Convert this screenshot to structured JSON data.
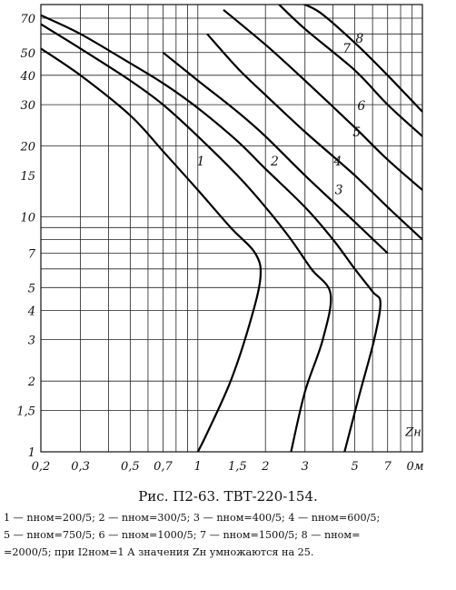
{
  "chart_data": {
    "type": "line",
    "x_axis": {
      "scale": "log",
      "unit": "Ом",
      "range": [
        0.2,
        10
      ],
      "ticks": [
        {
          "value": 0.2,
          "label": "0,2"
        },
        {
          "value": 0.3,
          "label": "0,3"
        },
        {
          "value": 0.5,
          "label": "0,5"
        },
        {
          "value": 0.7,
          "label": "0,7"
        },
        {
          "value": 1,
          "label": "1"
        },
        {
          "value": 1.5,
          "label": "1,5"
        },
        {
          "value": 2,
          "label": "2"
        },
        {
          "value": 3,
          "label": "3"
        },
        {
          "value": 5,
          "label": "5"
        },
        {
          "value": 7,
          "label": "7"
        },
        {
          "value": 10,
          "label": "0м"
        }
      ]
    },
    "y_axis": {
      "scale": "log",
      "range": [
        1,
        80
      ],
      "ticks": [
        {
          "value": 1,
          "label": "1"
        },
        {
          "value": 1.5,
          "label": "1,5"
        },
        {
          "value": 2,
          "label": "2"
        },
        {
          "value": 3,
          "label": "3"
        },
        {
          "value": 4,
          "label": "4"
        },
        {
          "value": 5,
          "label": "5"
        },
        {
          "value": 7,
          "label": "7"
        },
        {
          "value": 10,
          "label": "10"
        },
        {
          "value": 15,
          "label": "15"
        },
        {
          "value": 20,
          "label": "20"
        },
        {
          "value": 30,
          "label": "30"
        },
        {
          "value": 40,
          "label": "40"
        },
        {
          "value": 50,
          "label": "50"
        },
        {
          "value": 70,
          "label": "70"
        }
      ]
    },
    "axis_label": "Zн",
    "grid": true,
    "series": [
      {
        "label": "1",
        "points": [
          [
            0.2,
            52
          ],
          [
            0.3,
            40
          ],
          [
            0.5,
            27
          ],
          [
            0.7,
            19
          ],
          [
            1,
            13
          ],
          [
            1.4,
            9
          ],
          [
            1.8,
            7
          ],
          [
            1.9,
            5.5
          ],
          [
            1.7,
            3.5
          ],
          [
            1.4,
            2
          ],
          [
            1.1,
            1.2
          ],
          [
            1.0,
            1
          ]
        ]
      },
      {
        "label": "2",
        "points": [
          [
            0.2,
            66
          ],
          [
            0.3,
            52
          ],
          [
            0.5,
            38
          ],
          [
            0.7,
            30
          ],
          [
            1,
            22
          ],
          [
            1.5,
            15
          ],
          [
            2,
            11
          ],
          [
            2.6,
            8
          ],
          [
            3.2,
            6
          ],
          [
            3.9,
            4.7
          ],
          [
            3.6,
            3
          ],
          [
            3,
            1.8
          ],
          [
            2.6,
            1
          ]
        ]
      },
      {
        "label": "3",
        "points": [
          [
            0.2,
            72
          ],
          [
            0.3,
            60
          ],
          [
            0.5,
            45
          ],
          [
            0.7,
            37
          ],
          [
            1,
            29
          ],
          [
            1.5,
            21
          ],
          [
            2,
            16
          ],
          [
            3,
            11
          ],
          [
            4,
            8
          ],
          [
            5,
            6
          ],
          [
            6,
            4.8
          ],
          [
            6.5,
            4.3
          ],
          [
            6.1,
            3
          ],
          [
            5.2,
            1.7
          ],
          [
            4.5,
            1
          ]
        ]
      },
      {
        "label": "4",
        "points": [
          [
            0.7,
            50
          ],
          [
            1,
            38
          ],
          [
            1.5,
            28
          ],
          [
            2,
            22
          ],
          [
            3,
            15
          ],
          [
            5,
            9.5
          ],
          [
            7,
            7
          ]
        ]
      },
      {
        "label": "5",
        "points": [
          [
            1.1,
            60
          ],
          [
            1.5,
            43
          ],
          [
            2,
            33
          ],
          [
            3,
            23
          ],
          [
            5,
            15
          ],
          [
            7,
            11
          ],
          [
            10,
            8
          ]
        ]
      },
      {
        "label": "6",
        "points": [
          [
            1.3,
            76
          ],
          [
            2,
            54
          ],
          [
            3,
            38
          ],
          [
            5,
            24
          ],
          [
            7,
            17.5
          ],
          [
            10,
            13
          ]
        ]
      },
      {
        "label": "7",
        "points": [
          [
            2.3,
            80
          ],
          [
            3,
            63
          ],
          [
            5,
            42
          ],
          [
            7,
            30
          ],
          [
            10,
            22
          ]
        ]
      },
      {
        "label": "8",
        "points": [
          [
            2.8,
            82
          ],
          [
            3.5,
            74
          ],
          [
            5,
            55
          ],
          [
            7,
            40
          ],
          [
            10,
            28
          ]
        ]
      }
    ],
    "curve_labels": [
      {
        "text": "1",
        "x": 1.03,
        "y": 16.5
      },
      {
        "text": "2",
        "x": 2.2,
        "y": 16.5
      },
      {
        "text": "3",
        "x": 4.25,
        "y": 12.5
      },
      {
        "text": "4",
        "x": 4.2,
        "y": 16.5
      },
      {
        "text": "5",
        "x": 5.1,
        "y": 22
      },
      {
        "text": "6",
        "x": 5.35,
        "y": 28.5
      },
      {
        "text": "7",
        "x": 4.6,
        "y": 50
      },
      {
        "text": "8",
        "x": 5.25,
        "y": 55
      }
    ]
  },
  "caption": "Рис. П2-63. ТВТ-220-154.",
  "legend": {
    "line1": "1 — nном=200/5; 2 — nном=300/5; 3 — nном=400/5; 4 — nном=600/5;",
    "line2": "5 — nном=750/5; 6 — nном=1000/5; 7 — nном=1500/5; 8 — nном=",
    "line3": "=2000/5; при I2ном=1 А значения Zн умножаются на 25."
  }
}
